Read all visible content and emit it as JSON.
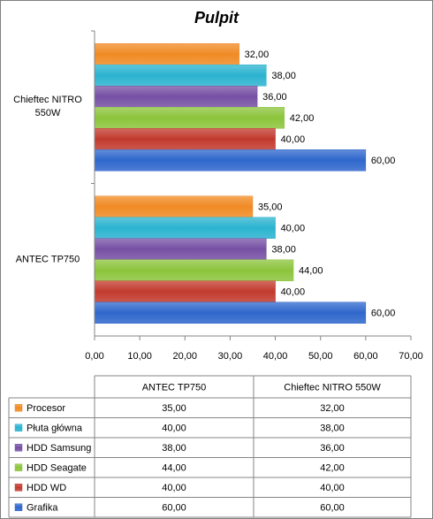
{
  "chart_data": {
    "type": "bar",
    "orientation": "horizontal",
    "title": "Pulpit",
    "categories": [
      "ANTEC TP750",
      "Chieftec NITRO 550W"
    ],
    "series": [
      {
        "name": "Procesor",
        "color": "#f08a24",
        "label_color": "#e0201b",
        "values": [
          35,
          32
        ],
        "value_labels": [
          "35,00",
          "32,00"
        ]
      },
      {
        "name": "Płuta główna",
        "color": "#2bb3cf",
        "label_color": "#e0201b",
        "values": [
          40,
          38
        ],
        "value_labels": [
          "40,00",
          "38,00"
        ]
      },
      {
        "name": "HDD Samsung",
        "color": "#7650a4",
        "label_color": "#e0201b",
        "values": [
          38,
          36
        ],
        "value_labels": [
          "38,00",
          "36,00"
        ]
      },
      {
        "name": "HDD Seagate",
        "color": "#8cc43c",
        "label_color": "#e0201b",
        "values": [
          44,
          42
        ],
        "value_labels": [
          "44,00",
          "42,00"
        ]
      },
      {
        "name": "HDD WD",
        "color": "#c23a2e",
        "label_color": "#000000",
        "values": [
          40,
          40
        ],
        "value_labels": [
          "40,00",
          "40,00"
        ]
      },
      {
        "name": "Grafika",
        "color": "#2f67cc",
        "label_color": "#000000",
        "values": [
          60,
          60
        ],
        "value_labels": [
          "60,00",
          "60,00"
        ]
      }
    ],
    "xlim": [
      0,
      70
    ],
    "xticks": [
      {
        "value": 0,
        "label": "0,00"
      },
      {
        "value": 10,
        "label": "10,00"
      },
      {
        "value": 20,
        "label": "20,00"
      },
      {
        "value": 30,
        "label": "30,00"
      },
      {
        "value": 40,
        "label": "40,00"
      },
      {
        "value": 50,
        "label": "50,00"
      },
      {
        "value": 60,
        "label": "60,00"
      },
      {
        "value": 70,
        "label": "70,00"
      }
    ],
    "grid": false,
    "data_table": true
  }
}
